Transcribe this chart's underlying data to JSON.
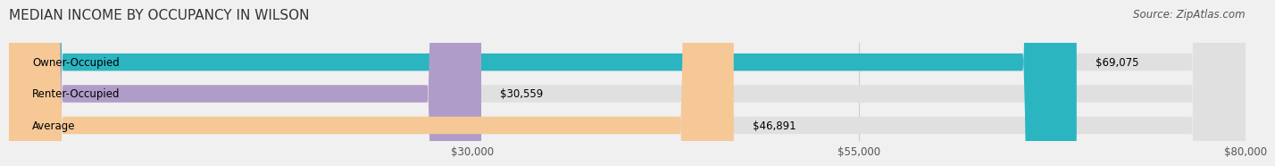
{
  "title": "MEDIAN INCOME BY OCCUPANCY IN WILSON",
  "source": "Source: ZipAtlas.com",
  "categories": [
    "Owner-Occupied",
    "Renter-Occupied",
    "Average"
  ],
  "values": [
    69075,
    30559,
    46891
  ],
  "bar_colors": [
    "#2ab5c1",
    "#b09cc8",
    "#f5c896"
  ],
  "bar_labels": [
    "$69,075",
    "$30,559",
    "$46,891"
  ],
  "xlim": [
    0,
    80000
  ],
  "xticks": [
    30000,
    55000,
    80000
  ],
  "xtick_labels": [
    "$30,000",
    "$55,000",
    "$80,000"
  ],
  "background_color": "#f0f0f0",
  "bar_bg_color": "#e0e0e0",
  "title_fontsize": 11,
  "label_fontsize": 8.5,
  "tick_fontsize": 8.5,
  "source_fontsize": 8.5,
  "bar_height": 0.55
}
